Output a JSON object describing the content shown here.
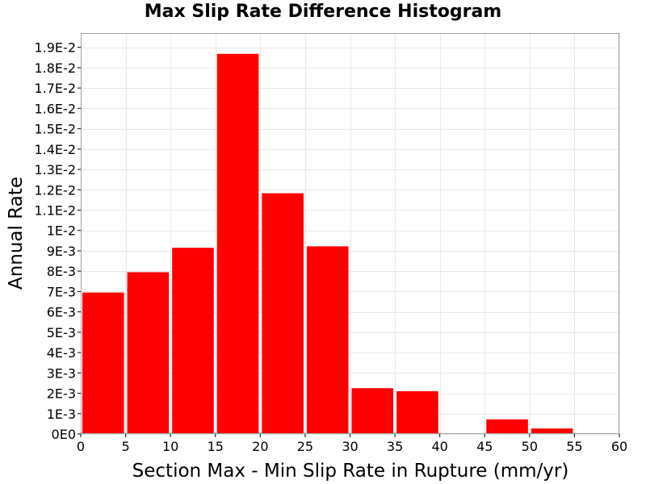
{
  "chart_data": {
    "type": "bar",
    "title": "Max Slip Rate Difference Histogram",
    "xlabel": "Section Max - Min Slip Rate in Rupture (mm/yr)",
    "ylabel": "Annual Rate",
    "bar_color": "#ff0000",
    "grid": true,
    "xlim": [
      0,
      60
    ],
    "ylim": [
      0,
      0.0197
    ],
    "x_ticks": [
      0,
      5,
      10,
      15,
      20,
      25,
      30,
      35,
      40,
      45,
      50,
      55,
      60
    ],
    "x_tick_labels": [
      "0",
      "5",
      "10",
      "15",
      "20",
      "25",
      "30",
      "35",
      "40",
      "45",
      "50",
      "55",
      "60"
    ],
    "y_ticks": [
      0,
      0.001,
      0.002,
      0.003,
      0.004,
      0.005,
      0.006,
      0.007,
      0.008,
      0.009,
      0.01,
      0.011,
      0.012,
      0.013,
      0.014,
      0.015,
      0.016,
      0.017,
      0.018,
      0.019
    ],
    "y_tick_labels": [
      "0E0",
      "1E-3",
      "2E-3",
      "3E-3",
      "4E-3",
      "5E-3",
      "6E-3",
      "7E-3",
      "8E-3",
      "9E-3",
      "1E-2",
      "1.1E-2",
      "1.2E-2",
      "1.3E-2",
      "1.4E-2",
      "1.5E-2",
      "1.6E-2",
      "1.7E-2",
      "1.8E-2",
      "1.9E-2"
    ],
    "bins": [
      {
        "x0": 0,
        "x1": 5,
        "value": 0.00695
      },
      {
        "x0": 5,
        "x1": 10,
        "value": 0.00795
      },
      {
        "x0": 10,
        "x1": 15,
        "value": 0.00915
      },
      {
        "x0": 15,
        "x1": 20,
        "value": 0.01868
      },
      {
        "x0": 20,
        "x1": 25,
        "value": 0.01183
      },
      {
        "x0": 25,
        "x1": 30,
        "value": 0.00922
      },
      {
        "x0": 30,
        "x1": 35,
        "value": 0.00225
      },
      {
        "x0": 35,
        "x1": 40,
        "value": 0.0021
      },
      {
        "x0": 40,
        "x1": 45,
        "value": 3e-05
      },
      {
        "x0": 45,
        "x1": 50,
        "value": 0.00072
      },
      {
        "x0": 50,
        "x1": 55,
        "value": 0.00027
      },
      {
        "x0": 55,
        "x1": 60,
        "value": 4e-05
      }
    ]
  }
}
